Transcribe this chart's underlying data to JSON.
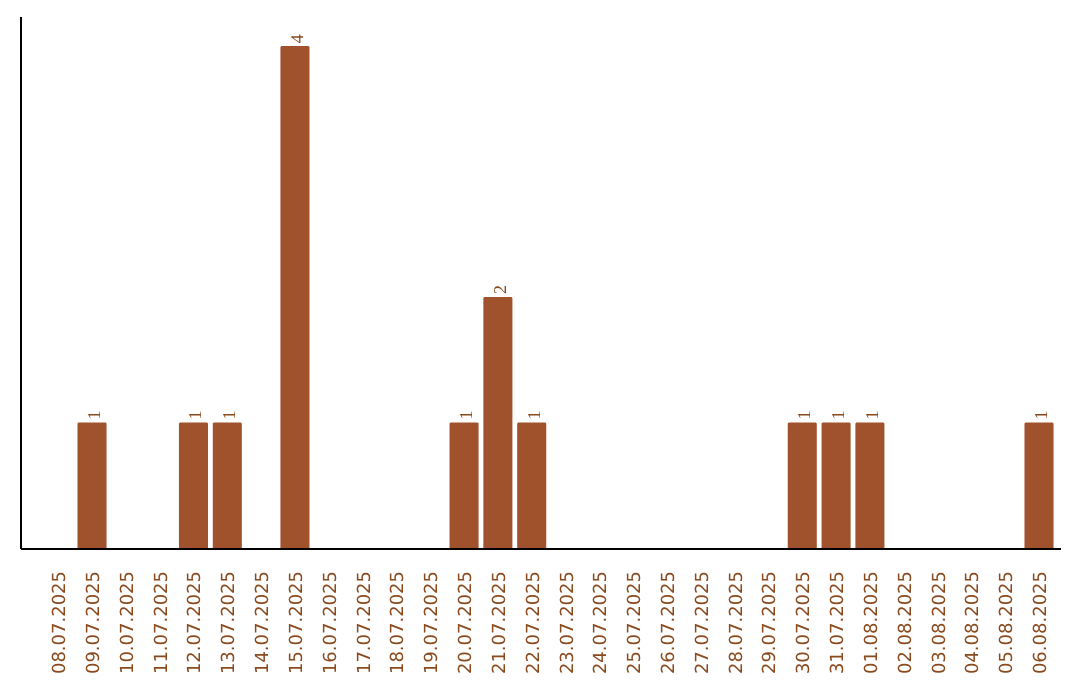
{
  "chart_data": {
    "type": "bar",
    "categories": [
      "08.07.2025",
      "09.07.2025",
      "10.07.2025",
      "11.07.2025",
      "12.07.2025",
      "13.07.2025",
      "14.07.2025",
      "15.07.2025",
      "16.07.2025",
      "17.07.2025",
      "18.07.2025",
      "19.07.2025",
      "20.07.2025",
      "21.07.2025",
      "22.07.2025",
      "23.07.2025",
      "24.07.2025",
      "25.07.2025",
      "26.07.2025",
      "27.07.2025",
      "28.07.2025",
      "29.07.2025",
      "30.07.2025",
      "31.07.2025",
      "01.08.2025",
      "02.08.2025",
      "03.08.2025",
      "04.08.2025",
      "05.08.2025",
      "06.08.2025"
    ],
    "values": [
      0,
      1,
      0,
      0,
      1,
      1,
      0,
      4,
      0,
      0,
      0,
      0,
      1,
      2,
      1,
      0,
      0,
      0,
      0,
      0,
      0,
      0,
      1,
      1,
      1,
      0,
      0,
      0,
      0,
      1
    ],
    "value_labels": [
      null,
      "1",
      null,
      null,
      "1",
      "1",
      null,
      "4",
      null,
      null,
      null,
      null,
      "1",
      "2",
      "1",
      null,
      null,
      null,
      null,
      null,
      null,
      null,
      "1",
      "1",
      "1",
      null,
      null,
      null,
      null,
      "1"
    ],
    "color": "#a0522d"
  }
}
